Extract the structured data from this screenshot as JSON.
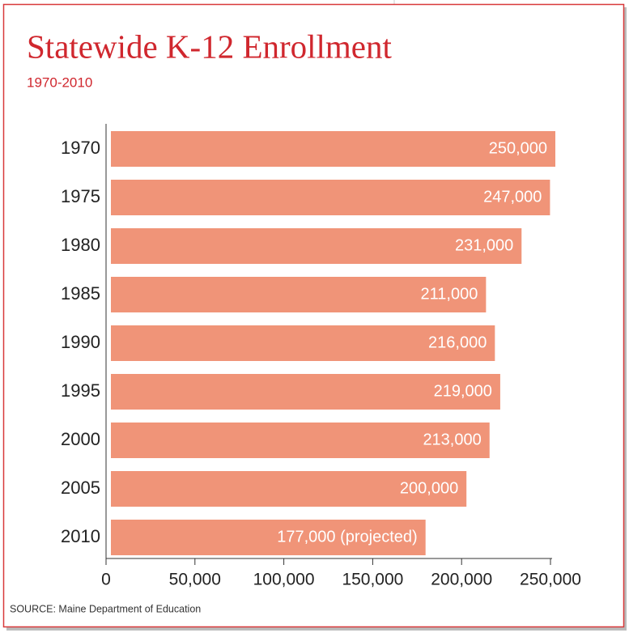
{
  "chart_data": {
    "type": "bar",
    "orientation": "horizontal",
    "title": "Statewide K-12 Enrollment",
    "subtitle": "1970-2010",
    "categories": [
      "1970",
      "1975",
      "1980",
      "1985",
      "1990",
      "1995",
      "2000",
      "2005",
      "2010"
    ],
    "values": [
      250000,
      247000,
      231000,
      211000,
      216000,
      219000,
      213000,
      200000,
      177000
    ],
    "value_labels": [
      "250,000",
      "247,000",
      "231,000",
      "211,000",
      "216,000",
      "219,000",
      "213,000",
      "200,000",
      "177,000 (projected)"
    ],
    "color": "#f09478",
    "xlim": [
      0,
      250000
    ],
    "xticks": [
      0,
      {
        "value": 50000,
        "label": "50,000"
      },
      {
        "value": 100000,
        "label": "100,000"
      },
      {
        "value": 150000,
        "label": "150,000"
      },
      {
        "value": 200000,
        "label": "200,000"
      },
      {
        "value": 250000,
        "label": "250,000"
      }
    ],
    "source": "SOURCE: Maine Department of Education"
  }
}
